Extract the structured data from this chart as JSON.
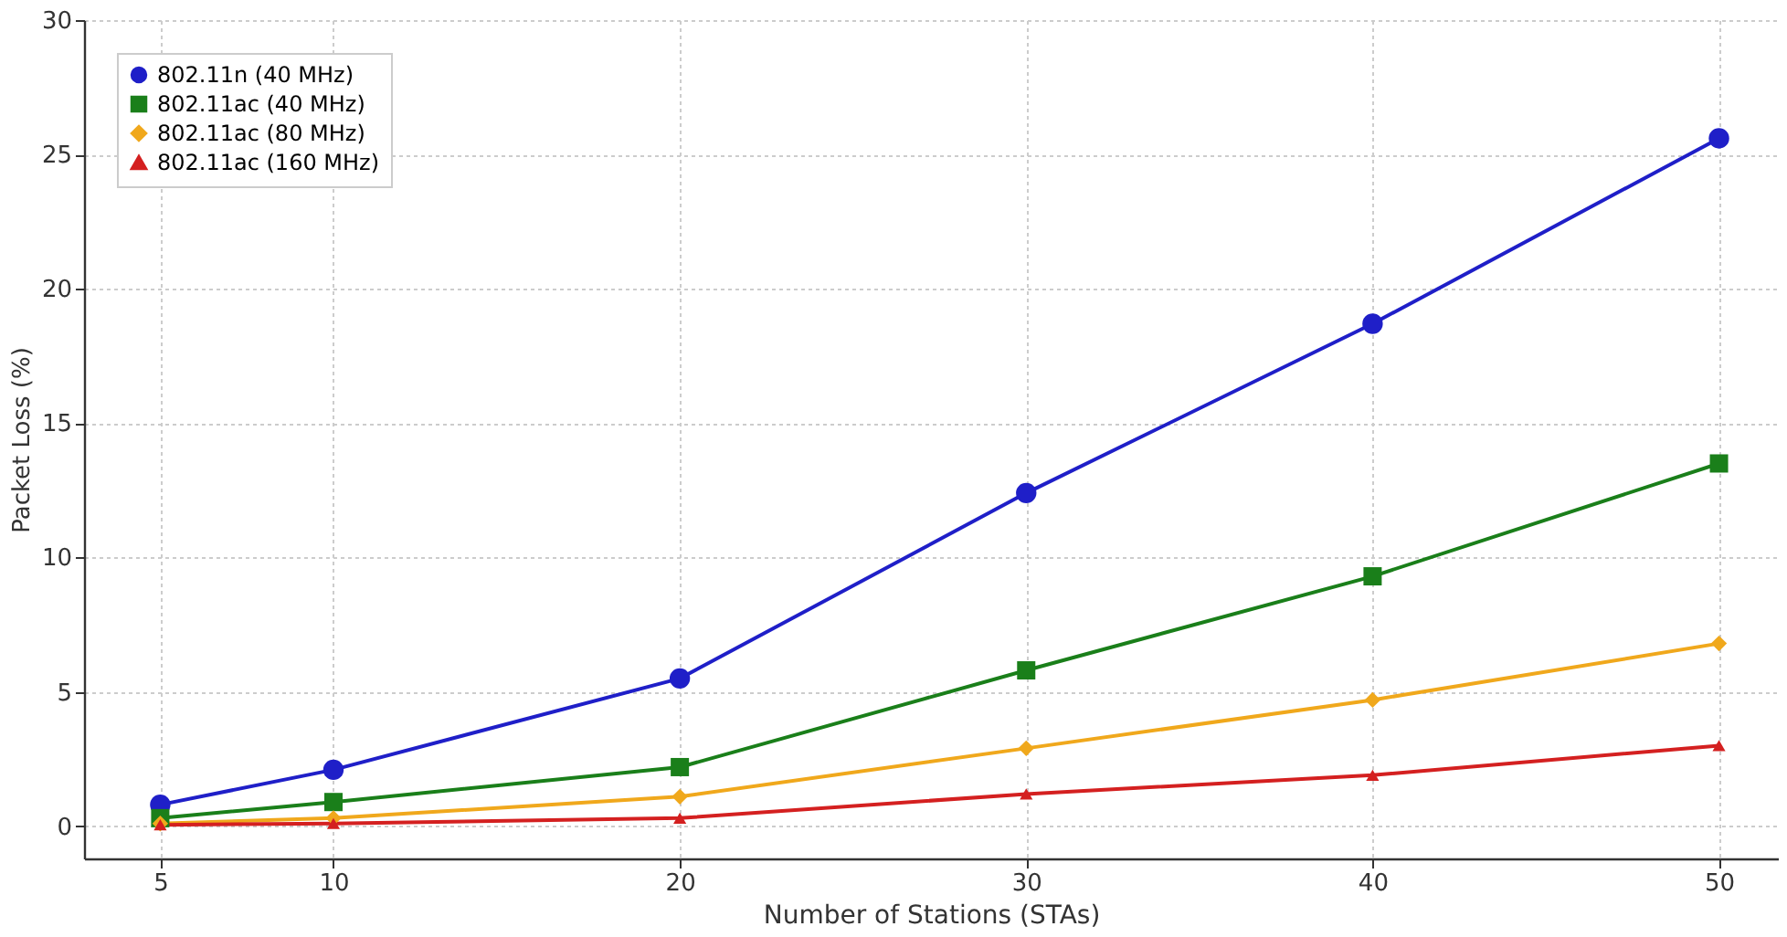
{
  "chart_data": {
    "type": "line",
    "xlabel": "Number of Stations (STAs)",
    "ylabel": "Packet Loss (%)",
    "x": [
      5,
      10,
      20,
      30,
      40,
      50
    ],
    "series": [
      {
        "name": "802.11n (40 MHz)",
        "color": "#1f1fc8",
        "marker": "circle",
        "values": [
          0.8,
          2.1,
          5.5,
          12.4,
          18.7,
          25.6
        ]
      },
      {
        "name": "802.11ac (40 MHz)",
        "color": "#1a7f1a",
        "marker": "square",
        "values": [
          0.3,
          0.9,
          2.2,
          5.8,
          9.3,
          13.5
        ]
      },
      {
        "name": "802.11ac (80 MHz)",
        "color": "#f0a81c",
        "marker": "diamond",
        "values": [
          0.1,
          0.3,
          1.1,
          2.9,
          4.7,
          6.8
        ]
      },
      {
        "name": "802.11ac (160 MHz)",
        "color": "#d42020",
        "marker": "triangle",
        "values": [
          0.05,
          0.1,
          0.3,
          1.2,
          1.9,
          3.0
        ]
      }
    ],
    "xlim": [
      2.8,
      51.7
    ],
    "xticks": [
      5,
      10,
      20,
      30,
      40,
      50
    ],
    "ylim": [
      -1.2,
      30
    ],
    "yticks": [
      0,
      5,
      10,
      15,
      20,
      25,
      30
    ],
    "grid": true,
    "legend": "top left",
    "line_style": "solid"
  }
}
